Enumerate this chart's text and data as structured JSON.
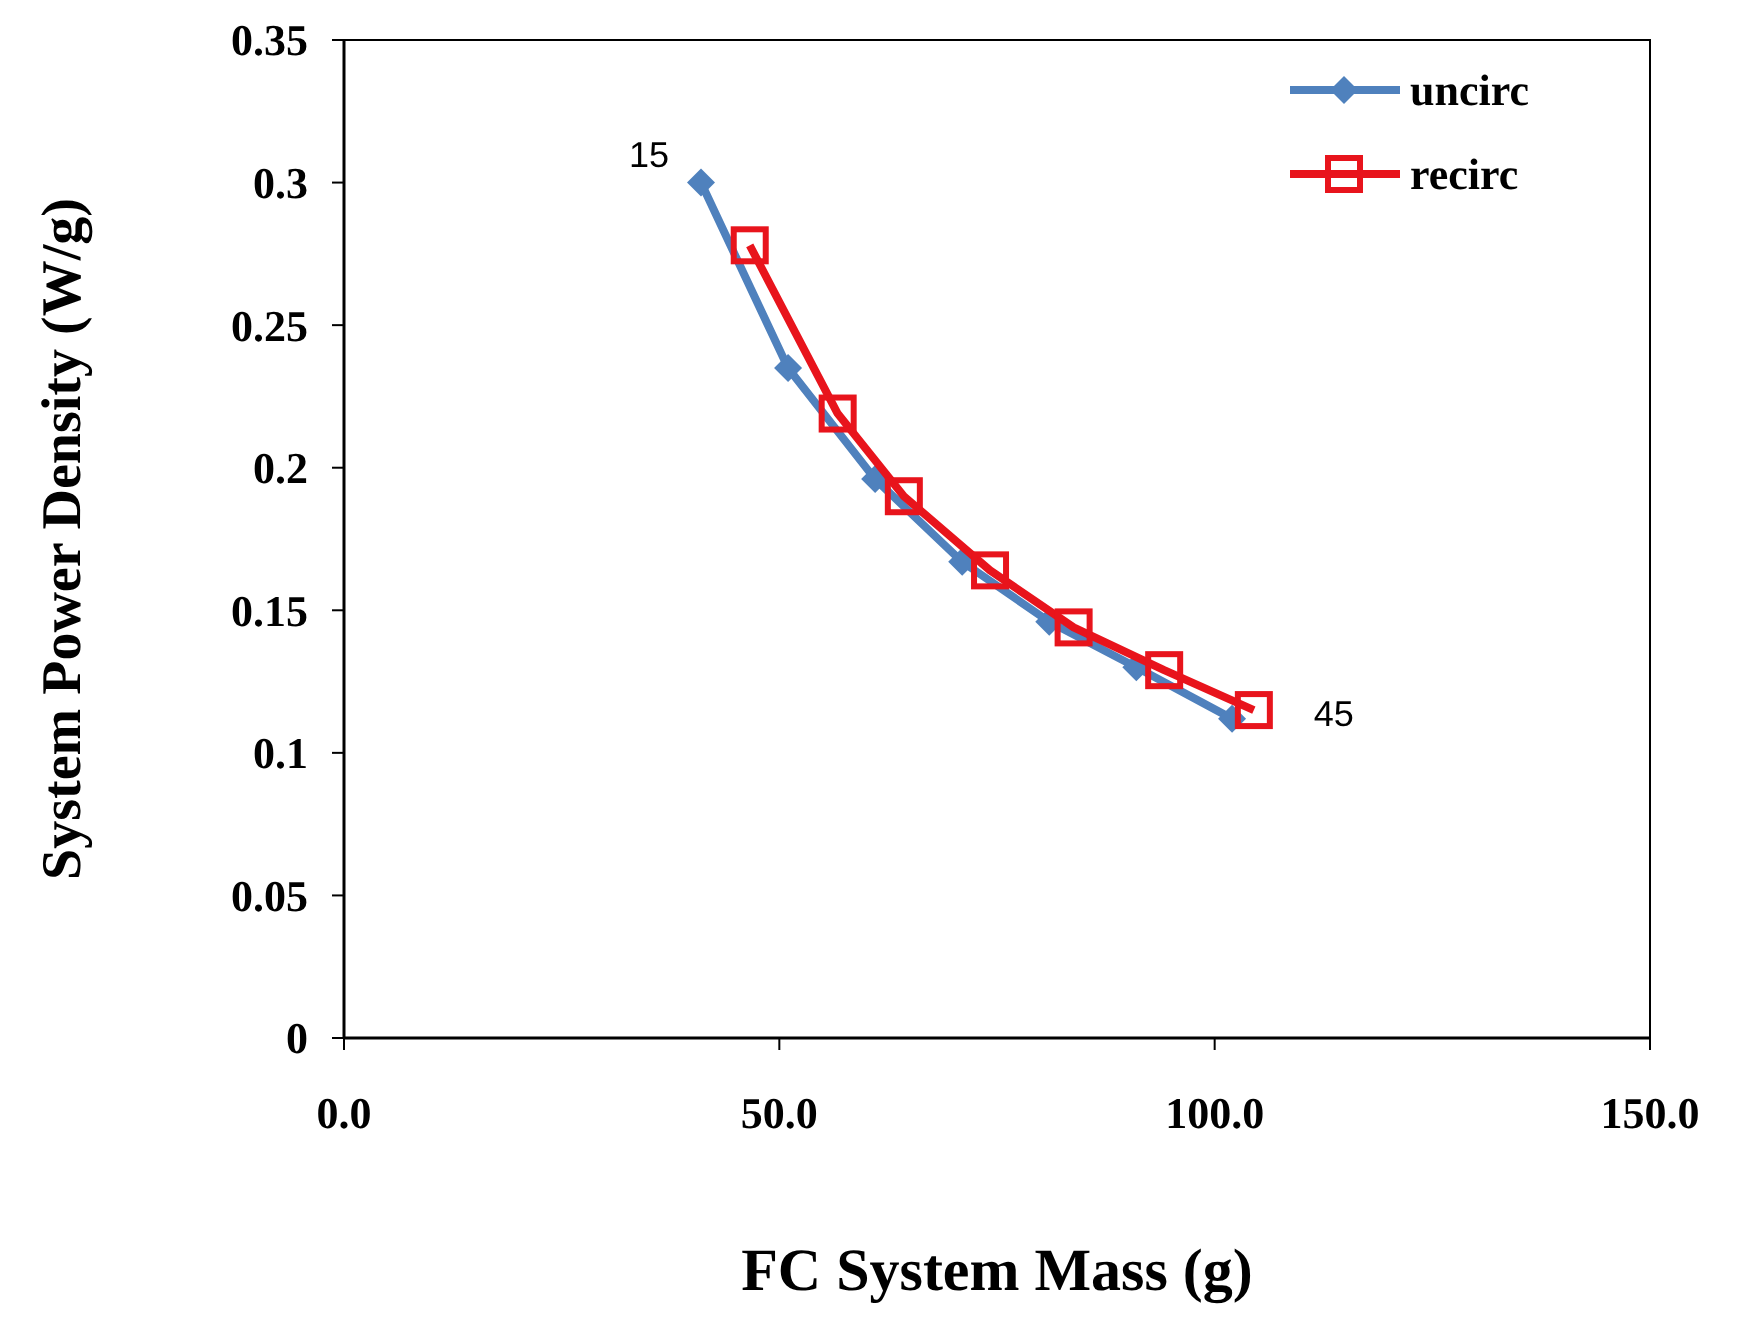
{
  "chart_data": {
    "type": "line",
    "xlabel": "FC System Mass (g)",
    "ylabel": "System Power Density (W/g)",
    "xlim": [
      0,
      150
    ],
    "xticks": [
      {
        "value": 0,
        "label": "0.0"
      },
      {
        "value": 50,
        "label": "50.0"
      },
      {
        "value": 100,
        "label": "100.0"
      },
      {
        "value": 150,
        "label": "150.0"
      }
    ],
    "ylim": [
      0,
      0.35
    ],
    "yticks": [
      0,
      0.05,
      0.1,
      0.15,
      0.2,
      0.25,
      0.3,
      0.35
    ],
    "series": [
      {
        "name": "uncirc",
        "color": "#4f81bd",
        "marker": "diamond",
        "x": [
          41,
          51,
          61,
          71,
          81,
          91,
          102
        ],
        "values": [
          0.3,
          0.235,
          0.196,
          0.167,
          0.146,
          0.13,
          0.112
        ]
      },
      {
        "name": "recirc",
        "color": "#e8141c",
        "marker": "square",
        "x": [
          46.6,
          56.7,
          64.3,
          74.2,
          83.8,
          94.2,
          104.5
        ],
        "values": [
          0.278,
          0.219,
          0.19,
          0.164,
          0.144,
          0.129,
          0.115
        ]
      }
    ],
    "annotations": [
      {
        "text": "15",
        "x": 41,
        "y": 0.3
      },
      {
        "text": "45",
        "x": 104.5,
        "y": 0.115
      }
    ],
    "legend": "top right",
    "grid": false
  }
}
